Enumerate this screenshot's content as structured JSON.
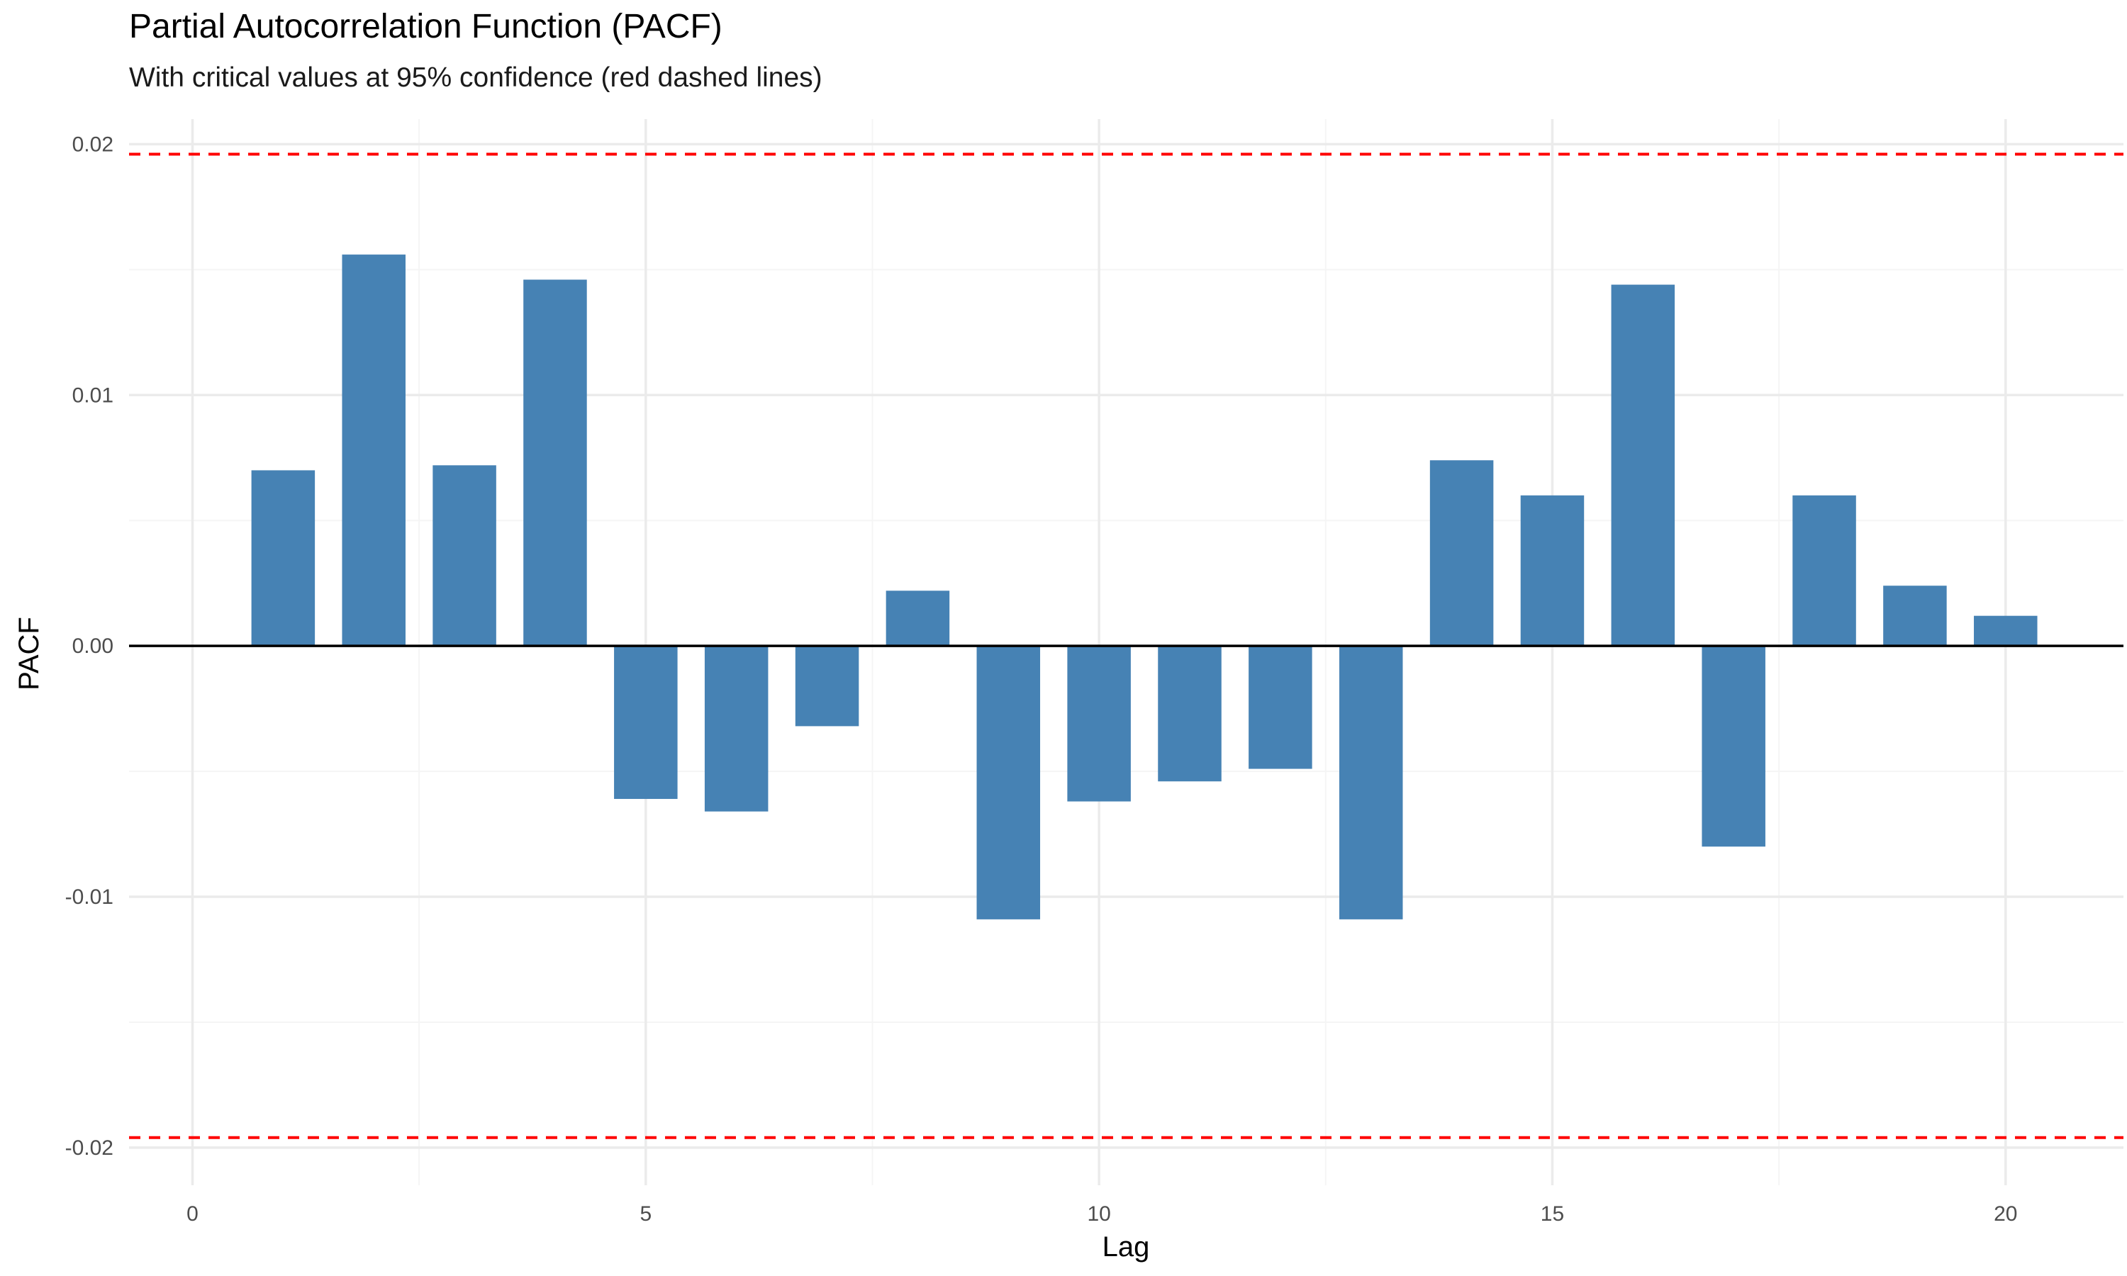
{
  "chart_data": {
    "type": "bar",
    "title": "Partial Autocorrelation Function (PACF)",
    "subtitle": "With critical values at 95% confidence (red dashed lines)",
    "xlabel": "Lag",
    "ylabel": "PACF",
    "x": [
      1,
      2,
      3,
      4,
      5,
      6,
      7,
      8,
      9,
      10,
      11,
      12,
      13,
      14,
      15,
      16,
      17,
      18,
      19,
      20
    ],
    "values": [
      0.007,
      0.0156,
      0.0072,
      0.0146,
      -0.0061,
      -0.0066,
      -0.0032,
      0.0022,
      -0.0109,
      -0.0062,
      -0.0054,
      -0.0049,
      -0.0109,
      0.0074,
      0.006,
      0.0144,
      -0.008,
      0.006,
      0.0024,
      0.0012
    ],
    "xlim": [
      -0.7,
      21.3
    ],
    "ylim": [
      -0.0215,
      0.021
    ],
    "x_ticks": [
      0,
      5,
      10,
      15,
      20
    ],
    "x_tick_labels": [
      "0",
      "5",
      "10",
      "15",
      "20"
    ],
    "y_ticks": [
      -0.02,
      -0.01,
      0,
      0.01,
      0.02
    ],
    "y_tick_labels": [
      "-0.02",
      "-0.01",
      "0.00",
      "0.01",
      "0.02"
    ],
    "critical_value": 0.0196,
    "grid": true,
    "colors": {
      "bar": "#4682b4",
      "critical_line": "#ff0000",
      "zero_line": "#000000",
      "grid_major": "#ebebeb",
      "grid_minor": "#f5f5f5"
    }
  }
}
